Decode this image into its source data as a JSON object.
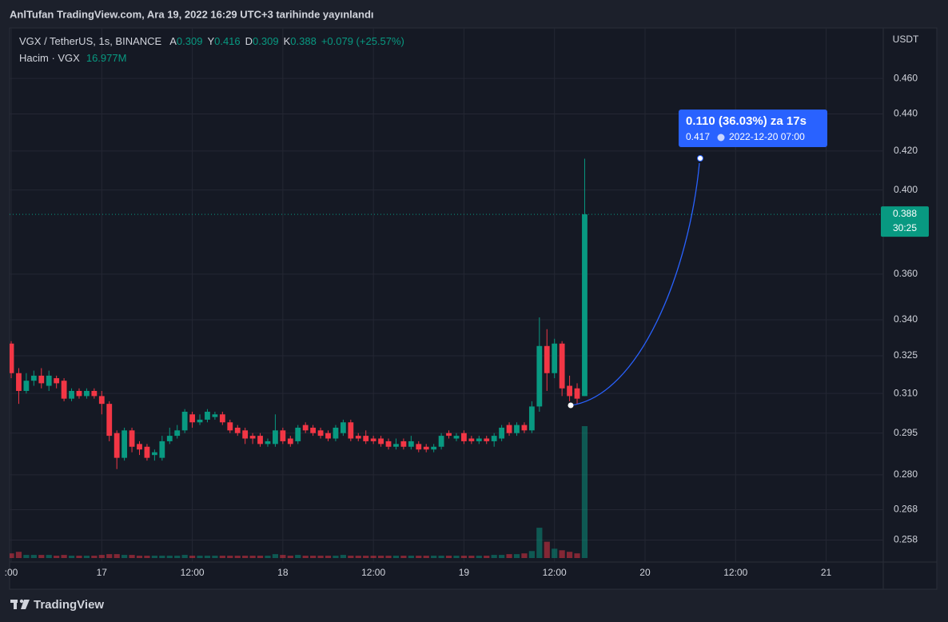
{
  "header": {
    "published": "AnlTufan TradingView.com, Ara 19, 2022 16:29 UTC+3 tarihinde yayınlandı"
  },
  "chart_data": {
    "type": "candlestick",
    "symbol": "VGX / TetherUS, 1s, BINANCE",
    "ohlc_legend": [
      {
        "label": "A",
        "value": "0.309"
      },
      {
        "label": "Y",
        "value": "0.416"
      },
      {
        "label": "D",
        "value": "0.309"
      },
      {
        "label": "K",
        "value": "0.388"
      }
    ],
    "change": "+0.079 (+25.57%)",
    "volume_legend": "Hacim · VGX",
    "volume_label": "16.977M",
    "y_unit": "USDT",
    "categories": [
      ":00",
      null,
      null,
      null,
      null,
      null,
      null,
      null,
      null,
      null,
      null,
      null,
      "17",
      null,
      null,
      null,
      null,
      null,
      null,
      null,
      null,
      null,
      null,
      null,
      "12:00",
      null,
      null,
      null,
      null,
      null,
      null,
      null,
      null,
      null,
      null,
      null,
      "18",
      null,
      null,
      null,
      null,
      null,
      null,
      null,
      null,
      null,
      null,
      null,
      "12:00",
      null,
      null,
      null,
      null,
      null,
      null,
      null,
      null,
      null,
      null,
      null,
      "19",
      null,
      null,
      null,
      null,
      null,
      null,
      null,
      null,
      null,
      null,
      null,
      "12:00",
      null,
      null,
      null,
      null,
      null,
      null,
      null,
      null,
      null,
      null,
      null,
      "20",
      null,
      null,
      null,
      null,
      null,
      null,
      null,
      null,
      null,
      null,
      null,
      "12:00",
      null,
      null,
      null,
      null,
      null,
      null,
      null,
      null,
      null,
      null,
      null,
      "21",
      null,
      null,
      null,
      null,
      null,
      null,
      null
    ],
    "open": [
      0.33,
      0.318,
      0.311,
      0.315,
      0.317,
      0.313,
      0.316,
      0.315,
      0.308,
      0.311,
      0.309,
      0.311,
      0.309,
      0.306,
      0.295,
      0.286,
      0.296,
      0.291,
      0.29,
      0.287,
      0.286,
      0.292,
      0.294,
      0.296,
      0.302,
      0.299,
      0.3,
      0.301,
      0.302,
      0.299,
      0.297,
      0.296,
      0.294,
      0.294,
      0.291,
      0.291,
      0.296,
      0.293,
      0.292,
      0.298,
      0.297,
      0.296,
      0.295,
      0.293,
      0.295,
      0.299,
      0.294,
      0.294,
      0.293,
      0.293,
      0.292,
      0.29,
      0.292,
      0.29,
      0.291,
      0.29,
      0.289,
      0.29,
      0.295,
      0.293,
      0.295,
      0.293,
      0.292,
      0.293,
      0.292,
      0.293,
      0.298,
      0.295,
      0.298,
      0.296,
      0.305,
      0.329,
      0.318,
      0.33,
      0.313,
      0.312,
      0.309,
      null,
      null,
      null,
      null,
      null,
      null,
      null,
      null,
      null,
      null,
      null,
      null,
      null,
      null,
      null,
      null,
      null,
      null,
      null,
      null,
      null,
      null,
      null,
      null,
      null,
      null,
      null,
      null,
      null,
      null,
      null,
      null,
      null,
      null,
      null,
      null,
      null,
      null,
      null
    ],
    "high": [
      0.331,
      0.32,
      0.318,
      0.319,
      0.32,
      0.319,
      0.317,
      0.316,
      0.312,
      0.312,
      0.312,
      0.312,
      0.311,
      0.307,
      0.296,
      0.297,
      0.297,
      0.292,
      0.291,
      0.289,
      0.294,
      0.297,
      0.298,
      0.304,
      0.303,
      0.302,
      0.304,
      0.303,
      0.303,
      0.3,
      0.298,
      0.297,
      0.295,
      0.295,
      0.293,
      0.302,
      0.297,
      0.294,
      0.298,
      0.299,
      0.298,
      0.297,
      0.296,
      0.298,
      0.3,
      0.3,
      0.295,
      0.296,
      0.294,
      0.294,
      0.293,
      0.293,
      0.293,
      0.294,
      0.292,
      0.291,
      0.291,
      0.295,
      0.296,
      0.295,
      0.296,
      0.294,
      0.294,
      0.294,
      0.295,
      0.298,
      0.299,
      0.299,
      0.299,
      0.307,
      0.341,
      0.336,
      0.332,
      0.331,
      0.317,
      0.314,
      0.416,
      null,
      null,
      null,
      null,
      null,
      null,
      null,
      null,
      null,
      null,
      null,
      null,
      null,
      null,
      null,
      null,
      null,
      null,
      null,
      null,
      null,
      null,
      null,
      null,
      null,
      null,
      null,
      null,
      null,
      null,
      null,
      null,
      null,
      null,
      null,
      null,
      null,
      null,
      null
    ],
    "low": [
      0.316,
      0.306,
      0.31,
      0.313,
      0.312,
      0.311,
      0.312,
      0.307,
      0.307,
      0.308,
      0.308,
      0.308,
      0.302,
      0.292,
      0.282,
      0.285,
      0.288,
      0.287,
      0.285,
      0.285,
      0.285,
      0.291,
      0.293,
      0.295,
      0.297,
      0.298,
      0.299,
      0.3,
      0.298,
      0.295,
      0.294,
      0.291,
      0.291,
      0.29,
      0.29,
      0.29,
      0.291,
      0.29,
      0.291,
      0.295,
      0.294,
      0.293,
      0.292,
      0.292,
      0.294,
      0.292,
      0.292,
      0.291,
      0.291,
      0.29,
      0.289,
      0.289,
      0.289,
      0.289,
      0.288,
      0.288,
      0.288,
      0.289,
      0.293,
      0.292,
      0.291,
      0.291,
      0.291,
      0.291,
      0.29,
      0.292,
      0.294,
      0.294,
      0.295,
      0.295,
      0.303,
      0.311,
      0.316,
      0.309,
      0.307,
      0.306,
      0.309,
      null,
      null,
      null,
      null,
      null,
      null,
      null,
      null,
      null,
      null,
      null,
      null,
      null,
      null,
      null,
      null,
      null,
      null,
      null,
      null,
      null,
      null,
      null,
      null,
      null,
      null,
      null,
      null,
      null,
      null,
      null,
      null,
      null,
      null,
      null,
      null,
      null,
      null,
      null
    ],
    "close": [
      0.318,
      0.311,
      0.315,
      0.317,
      0.314,
      0.317,
      0.314,
      0.308,
      0.311,
      0.309,
      0.311,
      0.309,
      0.306,
      0.294,
      0.286,
      0.296,
      0.29,
      0.289,
      0.286,
      0.288,
      0.292,
      0.294,
      0.296,
      0.303,
      0.299,
      0.3,
      0.303,
      0.302,
      0.299,
      0.296,
      0.295,
      0.293,
      0.293,
      0.291,
      0.292,
      0.296,
      0.292,
      0.291,
      0.297,
      0.296,
      0.295,
      0.294,
      0.293,
      0.297,
      0.299,
      0.293,
      0.293,
      0.292,
      0.292,
      0.291,
      0.29,
      0.291,
      0.29,
      0.292,
      0.289,
      0.289,
      0.29,
      0.294,
      0.294,
      0.294,
      0.292,
      0.292,
      0.293,
      0.292,
      0.294,
      0.297,
      0.295,
      0.298,
      0.296,
      0.305,
      0.329,
      0.318,
      0.33,
      0.312,
      0.309,
      0.308,
      0.388,
      null,
      null,
      null,
      null,
      null,
      null,
      null,
      null,
      null,
      null,
      null,
      null,
      null,
      null,
      null,
      null,
      null,
      null,
      null,
      null,
      null,
      null,
      null,
      null,
      null,
      null,
      null,
      null,
      null,
      null,
      null,
      null,
      null,
      null,
      null,
      null,
      null,
      null,
      null
    ],
    "volume": [
      600000,
      800000,
      400000,
      400000,
      400000,
      400000,
      300000,
      400000,
      300000,
      300000,
      300000,
      300000,
      400000,
      500000,
      500000,
      400000,
      400000,
      300000,
      300000,
      300000,
      300000,
      300000,
      300000,
      400000,
      300000,
      300000,
      300000,
      300000,
      300000,
      300000,
      300000,
      300000,
      300000,
      300000,
      300000,
      500000,
      400000,
      300000,
      400000,
      300000,
      300000,
      300000,
      300000,
      300000,
      400000,
      300000,
      300000,
      300000,
      300000,
      300000,
      300000,
      300000,
      300000,
      300000,
      300000,
      300000,
      300000,
      300000,
      300000,
      300000,
      300000,
      300000,
      300000,
      300000,
      400000,
      400000,
      500000,
      500000,
      600000,
      900000,
      3900000,
      2100000,
      1200000,
      1000000,
      800000,
      600000,
      16977000,
      null,
      null,
      null,
      null,
      null,
      null,
      null,
      null,
      null,
      null,
      null,
      null,
      null,
      null,
      null,
      null,
      null,
      null,
      null,
      null,
      null,
      null,
      null,
      null,
      null,
      null,
      null,
      null,
      null,
      null,
      null,
      null,
      null,
      null,
      null,
      null,
      null,
      null,
      null
    ],
    "up_color": "#089981",
    "down_color": "#f23645",
    "ylim": [
      0.251,
      0.49
    ],
    "log_scale": true,
    "yticks": [
      {
        "value": 0.46,
        "label": "0.460"
      },
      {
        "value": 0.44,
        "label": "0.440"
      },
      {
        "value": 0.42,
        "label": "0.420"
      },
      {
        "value": 0.4,
        "label": "0.400"
      },
      {
        "value": 0.36,
        "label": "0.360"
      },
      {
        "value": 0.34,
        "label": "0.340"
      },
      {
        "value": 0.325,
        "label": "0.325"
      },
      {
        "value": 0.31,
        "label": "0.310"
      },
      {
        "value": 0.295,
        "label": "0.295"
      },
      {
        "value": 0.28,
        "label": "0.280"
      },
      {
        "value": 0.268,
        "label": "0.268"
      },
      {
        "value": 0.258,
        "label": "0.258"
      }
    ],
    "grid": true,
    "last_price_label": "0.388",
    "countdown": "30:25",
    "projection": {
      "label": "0.110 (36.03%) za 17s",
      "price": "0.417",
      "date": "2022-12-20  07:00"
    }
  },
  "footer": {
    "brand": "TradingView"
  }
}
